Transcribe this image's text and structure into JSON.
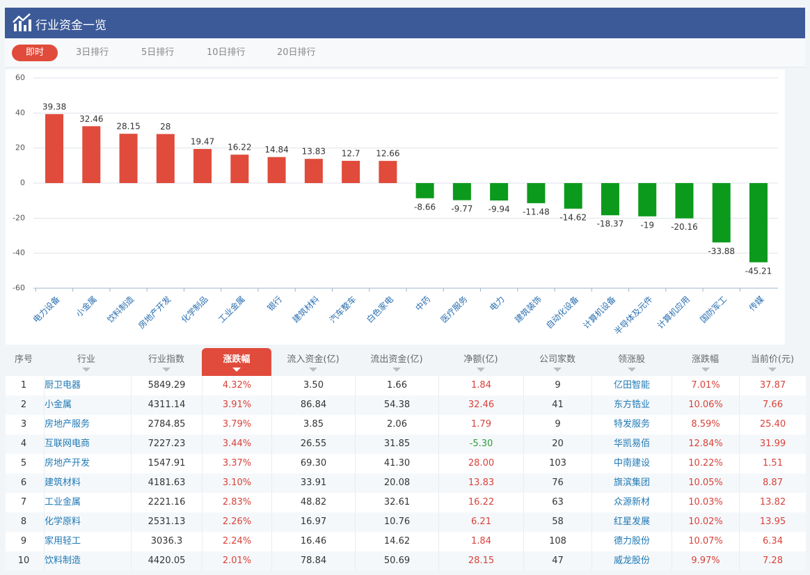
{
  "header": {
    "title": "行业资金一览"
  },
  "tabs": [
    "即时",
    "3日排行",
    "5日排行",
    "10日排行",
    "20日排行"
  ],
  "chart_data": {
    "type": "bar",
    "categories": [
      "电力设备",
      "小金属",
      "饮料制造",
      "房地产开发",
      "化学制品",
      "工业金属",
      "银行",
      "建筑材料",
      "汽车整车",
      "白色家电",
      "中药",
      "医疗服务",
      "电力",
      "建筑装饰",
      "自动化设备",
      "计算机设备",
      "半导体及元件",
      "计算机应用",
      "国防军工",
      "传媒"
    ],
    "values": [
      39.38,
      32.46,
      28.15,
      28,
      19.47,
      16.22,
      14.84,
      13.83,
      12.7,
      12.66,
      -8.66,
      -9.77,
      -9.94,
      -11.48,
      -14.62,
      -18.37,
      -19,
      -20.16,
      -33.88,
      -45.21
    ],
    "color_positive": "#e04b3b",
    "color_negative": "#0c9a1c",
    "ylim": [
      -60,
      60
    ],
    "yticks": [
      -60,
      -40,
      -20,
      0,
      20,
      40,
      60
    ],
    "grid": true
  },
  "table": {
    "columns": [
      "序号",
      "行业",
      "行业指数",
      "涨跌幅",
      "流入资金(亿)",
      "流出资金(亿)",
      "净额(亿)",
      "公司家数",
      "领涨股",
      "涨跌幅",
      "当前价(元)"
    ],
    "rows": [
      [
        "1",
        "厨卫电器",
        "5849.29",
        "4.32%",
        "3.50",
        "1.66",
        "1.84",
        "9",
        "亿田智能",
        "7.01%",
        "37.87"
      ],
      [
        "2",
        "小金属",
        "4311.14",
        "3.91%",
        "86.84",
        "54.38",
        "32.46",
        "41",
        "东方锆业",
        "10.06%",
        "7.66"
      ],
      [
        "3",
        "房地产服务",
        "2784.85",
        "3.79%",
        "3.85",
        "2.06",
        "1.79",
        "9",
        "特发服务",
        "8.59%",
        "25.40"
      ],
      [
        "4",
        "互联网电商",
        "7227.23",
        "3.44%",
        "26.55",
        "31.85",
        "-5.30",
        "20",
        "华凯易佰",
        "12.84%",
        "31.99"
      ],
      [
        "5",
        "房地产开发",
        "1547.91",
        "3.37%",
        "69.30",
        "41.30",
        "28.00",
        "103",
        "中南建设",
        "10.22%",
        "1.51"
      ],
      [
        "6",
        "建筑材料",
        "4181.63",
        "3.10%",
        "33.91",
        "20.08",
        "13.83",
        "76",
        "旗滨集团",
        "10.05%",
        "8.87"
      ],
      [
        "7",
        "工业金属",
        "2221.16",
        "2.83%",
        "48.82",
        "32.61",
        "16.22",
        "63",
        "众源新材",
        "10.03%",
        "13.82"
      ],
      [
        "8",
        "化学原料",
        "2531.13",
        "2.26%",
        "16.97",
        "10.76",
        "6.21",
        "58",
        "红星发展",
        "10.02%",
        "13.95"
      ],
      [
        "9",
        "家用轻工",
        "3036.3",
        "2.24%",
        "16.46",
        "14.62",
        "1.84",
        "108",
        "德力股份",
        "10.07%",
        "6.34"
      ],
      [
        "10",
        "饮料制造",
        "4420.05",
        "2.01%",
        "78.84",
        "50.69",
        "28.15",
        "47",
        "威龙股份",
        "9.97%",
        "7.28"
      ]
    ]
  }
}
